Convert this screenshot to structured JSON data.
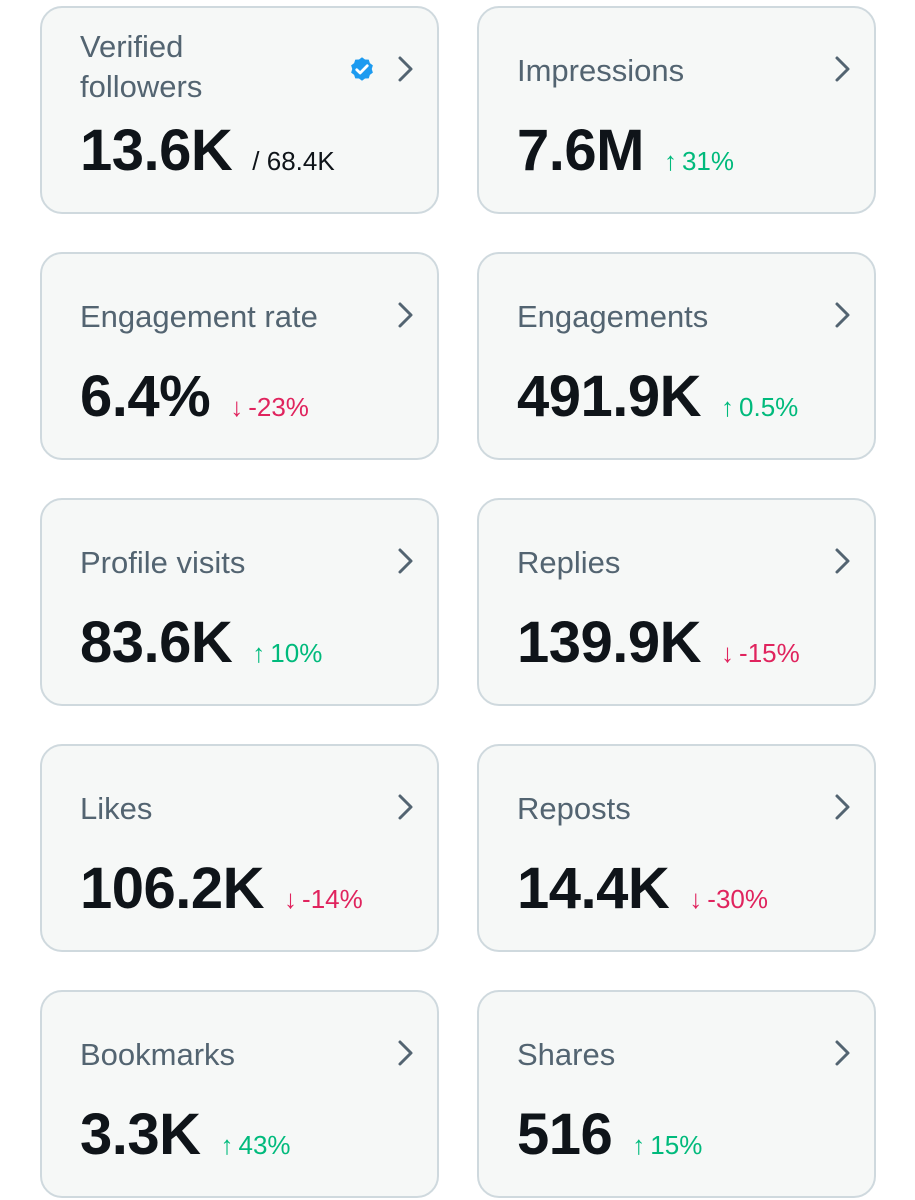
{
  "colors": {
    "card_bg": "#f6f8f7",
    "card_border": "#cfd9de",
    "title": "#536471",
    "value": "#0f1419",
    "up": "#00ba7c",
    "down": "#e0245e",
    "verified": "#1d9bf0"
  },
  "cards": [
    {
      "title": "Verified followers",
      "value": "13.6K",
      "total": "/ 68.4K",
      "icon": "verified-badge-icon"
    },
    {
      "title": "Impressions",
      "value": "7.6M",
      "delta": "31%",
      "arrow": "↑",
      "direction": "up"
    },
    {
      "title": "Engagement rate",
      "value": "6.4%",
      "delta": "-23%",
      "arrow": "↓",
      "direction": "down"
    },
    {
      "title": "Engagements",
      "value": "491.9K",
      "delta": "0.5%",
      "arrow": "↑",
      "direction": "up"
    },
    {
      "title": "Profile visits",
      "value": "83.6K",
      "delta": "10%",
      "arrow": "↑",
      "direction": "up"
    },
    {
      "title": "Replies",
      "value": "139.9K",
      "delta": "-15%",
      "arrow": "↓",
      "direction": "down"
    },
    {
      "title": "Likes",
      "value": "106.2K",
      "delta": "-14%",
      "arrow": "↓",
      "direction": "down"
    },
    {
      "title": "Reposts",
      "value": "14.4K",
      "delta": "-30%",
      "arrow": "↓",
      "direction": "down"
    },
    {
      "title": "Bookmarks",
      "value": "3.3K",
      "delta": "43%",
      "arrow": "↑",
      "direction": "up"
    },
    {
      "title": "Shares",
      "value": "516",
      "delta": "15%",
      "arrow": "↑",
      "direction": "up"
    }
  ]
}
